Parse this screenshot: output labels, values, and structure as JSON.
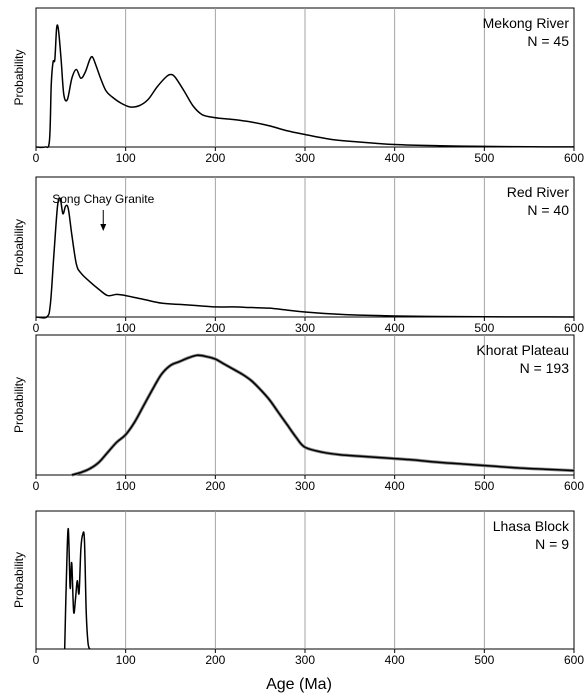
{
  "figure": {
    "xlabel": "Age (Ma)"
  },
  "chart_data": [
    {
      "type": "line",
      "title": "Mekong River",
      "subtitle": "N = 45",
      "ylabel": "Probability",
      "xlim": [
        0,
        600
      ],
      "xticks": [
        0,
        100,
        200,
        300,
        400,
        500,
        600
      ],
      "tick_labels": [
        "0",
        "100",
        "200",
        "300",
        "400",
        "500",
        "600"
      ],
      "grid": true,
      "x": [
        0,
        10,
        15,
        17,
        19,
        21,
        23,
        25,
        28,
        31,
        35,
        40,
        45,
        50,
        55,
        60,
        63,
        67,
        72,
        78,
        85,
        95,
        105,
        115,
        125,
        135,
        145,
        150,
        155,
        165,
        175,
        185,
        195,
        205,
        220,
        240,
        260,
        280,
        300,
        330,
        360,
        400,
        450,
        500,
        550,
        600
      ],
      "values": [
        0,
        0,
        5,
        50,
        68,
        70,
        95,
        94,
        70,
        42,
        38,
        55,
        62,
        55,
        60,
        70,
        72,
        65,
        55,
        45,
        40,
        35,
        32,
        33,
        38,
        48,
        56,
        58,
        56,
        45,
        33,
        26,
        24,
        23,
        22,
        20,
        17,
        13,
        10,
        6,
        4,
        2,
        1,
        0.5,
        0.2,
        0.1
      ],
      "annotations": []
    },
    {
      "type": "line",
      "title": "Red River",
      "subtitle": "N = 40",
      "ylabel": "Probability",
      "xlim": [
        0,
        600
      ],
      "xticks": [
        0,
        100,
        200,
        300,
        400,
        500,
        600
      ],
      "tick_labels": [
        "0",
        "100",
        "200",
        "300",
        "400",
        "500",
        "600"
      ],
      "grid": true,
      "x": [
        0,
        12,
        16,
        20,
        24,
        27,
        30,
        33,
        36,
        40,
        45,
        50,
        60,
        70,
        80,
        90,
        100,
        120,
        140,
        160,
        180,
        200,
        220,
        240,
        260,
        280,
        300,
        330,
        360,
        400,
        450,
        500,
        550,
        600
      ],
      "values": [
        0,
        0,
        10,
        50,
        88,
        94,
        82,
        88,
        86,
        65,
        42,
        35,
        28,
        22,
        17,
        18,
        17,
        14,
        11,
        10,
        9,
        8,
        8,
        7.5,
        7,
        5.5,
        4,
        2.5,
        1.5,
        0.8,
        0.4,
        0.2,
        0.1,
        0.05
      ],
      "annotations": [
        {
          "text": "Song Chay Granite",
          "x": 75,
          "arrow": true
        }
      ]
    },
    {
      "type": "line",
      "title": "Khorat Plateau",
      "subtitle": "N = 193",
      "ylabel": "Probability",
      "xlim": [
        0,
        600
      ],
      "xticks": [
        0,
        100,
        200,
        300,
        400,
        500,
        600
      ],
      "tick_labels": [
        "0",
        "100",
        "200",
        "300",
        "400",
        "500",
        "600"
      ],
      "grid": true,
      "x": [
        40,
        50,
        60,
        70,
        80,
        90,
        100,
        110,
        120,
        130,
        140,
        150,
        160,
        170,
        180,
        190,
        200,
        210,
        220,
        230,
        240,
        250,
        260,
        270,
        280,
        290,
        300,
        320,
        340,
        360,
        380,
        400,
        420,
        450,
        480,
        510,
        540,
        570,
        600
      ],
      "values": [
        0,
        2,
        5,
        10,
        18,
        26,
        32,
        42,
        55,
        68,
        80,
        87,
        90,
        93,
        95,
        94,
        92,
        88,
        84,
        80,
        75,
        68,
        60,
        50,
        40,
        30,
        22,
        18,
        16,
        15,
        14,
        13,
        12,
        10,
        8.5,
        7,
        5.5,
        4.5,
        3.5
      ],
      "annotations": []
    },
    {
      "type": "line",
      "title": "Lhasa Block",
      "subtitle": "N = 9",
      "ylabel": "Probability",
      "xlim": [
        0,
        600
      ],
      "xticks": [
        0,
        100,
        200,
        300,
        400,
        500,
        600
      ],
      "tick_labels": [
        "0",
        "100",
        "200",
        "300",
        "400",
        "500",
        "600"
      ],
      "grid": true,
      "x": [
        32,
        34,
        36,
        38,
        39,
        40,
        42,
        44,
        46,
        48,
        50,
        52,
        54,
        56,
        58,
        60
      ],
      "values": [
        0,
        60,
        97,
        50,
        62,
        68,
        30,
        40,
        55,
        45,
        80,
        92,
        88,
        30,
        5,
        0
      ],
      "annotations": []
    }
  ]
}
